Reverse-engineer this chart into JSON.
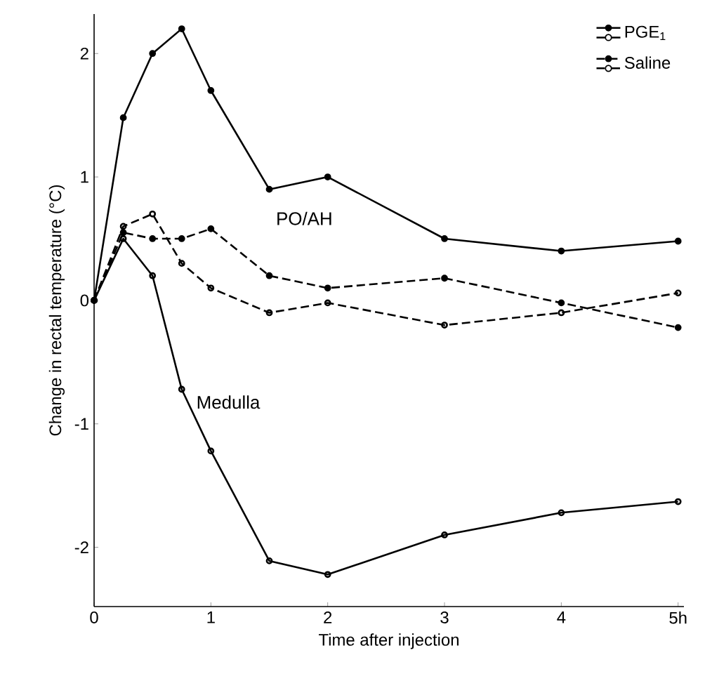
{
  "chart_data": {
    "type": "line",
    "xlabel": "Time after injection",
    "ylabel": "Change in rectal temperature (°C)",
    "x": [
      0,
      0.25,
      0.5,
      0.75,
      1,
      1.5,
      2,
      3,
      4,
      5
    ],
    "series": [
      {
        "name": "PGE$_{1}$",
        "color": "#000000",
        "marker": "circle",
        "line_style": "solid",
        "values": [
          0,
          1.48,
          2.0,
          2.2,
          1.7,
          0.9,
          1.0,
          0.5,
          0.4,
          0.48
        ]
      },
      {
        "color": "#000000",
        "marker": "open circle",
        "line_style": "solid",
        "values": [
          0,
          0.5,
          0.2,
          -0.72,
          -1.22,
          -2.11,
          -2.22,
          -1.9,
          -1.72,
          -1.63
        ]
      },
      {
        "name": "Saline",
        "color": "#000000",
        "marker": "circle",
        "line_style": "dashed",
        "values": [
          0,
          0.55,
          0.5,
          0.5,
          0.58,
          0.2,
          0.1,
          0.18,
          -0.02,
          -0.22
        ]
      },
      {
        "color": "#000000",
        "marker": "open circle",
        "line_style": "dashed",
        "values": [
          0,
          0.6,
          0.7,
          0.3,
          0.1,
          -0.1,
          -0.02,
          -0.2,
          -0.1,
          0.06
        ]
      }
    ],
    "xlim": [
      0,
      5.05
    ],
    "ylim": [
      -2.48,
      2.32
    ],
    "xticks": [
      0,
      1,
      2,
      3,
      4,
      {
        "value": 5,
        "label": "5h"
      }
    ],
    "yticks": [
      -2,
      -1,
      0,
      1,
      2
    ],
    "legend": "top right",
    "grid": false,
    "annotations": [
      "PO/AH",
      "Medulla"
    ]
  }
}
